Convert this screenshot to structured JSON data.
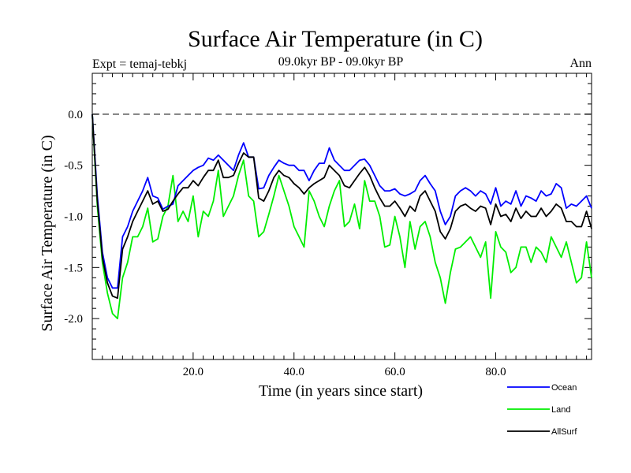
{
  "chart_data": {
    "type": "line",
    "title": "Surface Air Temperature (in C)",
    "subtitle": "09.0kyr BP - 09.0kyr BP",
    "expt_label": "Expt = temaj-tebkj",
    "season_label": "Ann",
    "xlabel": "Time (in years since start)",
    "ylabel": "Surface Air Temperature (in C)",
    "xlim": [
      0,
      99
    ],
    "ylim": [
      -2.4,
      0.4
    ],
    "xticks": [
      20,
      40,
      60,
      80
    ],
    "xtick_labels": [
      "20.0",
      "40.0",
      "60.0",
      "80.0"
    ],
    "yticks": [
      0.0,
      -0.5,
      -1.0,
      -1.5,
      -2.0
    ],
    "ytick_labels": [
      "0.0",
      "-0.5",
      "-1.0",
      "-1.5",
      "-2.0"
    ],
    "zero_line": 0.0,
    "x": [
      0,
      1,
      2,
      3,
      4,
      5,
      6,
      7,
      8,
      9,
      10,
      11,
      12,
      13,
      14,
      15,
      16,
      17,
      18,
      19,
      20,
      21,
      22,
      23,
      24,
      25,
      26,
      27,
      28,
      29,
      30,
      31,
      32,
      33,
      34,
      35,
      36,
      37,
      38,
      39,
      40,
      41,
      42,
      43,
      44,
      45,
      46,
      47,
      48,
      49,
      50,
      51,
      52,
      53,
      54,
      55,
      56,
      57,
      58,
      59,
      60,
      61,
      62,
      63,
      64,
      65,
      66,
      67,
      68,
      69,
      70,
      71,
      72,
      73,
      74,
      75,
      76,
      77,
      78,
      79,
      80,
      81,
      82,
      83,
      84,
      85,
      86,
      87,
      88,
      89,
      90,
      91,
      92,
      93,
      94,
      95,
      96,
      97,
      98,
      99
    ],
    "series": [
      {
        "name": "Ocean",
        "color": "#0000ff",
        "values": [
          0.0,
          -0.8,
          -1.35,
          -1.6,
          -1.7,
          -1.7,
          -1.2,
          -1.1,
          -0.95,
          -0.85,
          -0.75,
          -0.62,
          -0.8,
          -0.82,
          -0.93,
          -0.9,
          -0.88,
          -0.7,
          -0.65,
          -0.6,
          -0.55,
          -0.52,
          -0.5,
          -0.43,
          -0.45,
          -0.4,
          -0.45,
          -0.5,
          -0.55,
          -0.4,
          -0.28,
          -0.42,
          -0.42,
          -0.73,
          -0.72,
          -0.6,
          -0.52,
          -0.45,
          -0.48,
          -0.5,
          -0.5,
          -0.55,
          -0.55,
          -0.65,
          -0.55,
          -0.48,
          -0.48,
          -0.33,
          -0.45,
          -0.5,
          -0.55,
          -0.55,
          -0.5,
          -0.45,
          -0.44,
          -0.5,
          -0.6,
          -0.7,
          -0.75,
          -0.75,
          -0.73,
          -0.78,
          -0.8,
          -0.78,
          -0.75,
          -0.65,
          -0.6,
          -0.68,
          -0.75,
          -0.95,
          -1.08,
          -1.0,
          -0.8,
          -0.75,
          -0.72,
          -0.75,
          -0.8,
          -0.75,
          -0.78,
          -0.88,
          -0.72,
          -0.9,
          -0.85,
          -0.88,
          -0.75,
          -0.9,
          -0.8,
          -0.82,
          -0.85,
          -0.75,
          -0.8,
          -0.78,
          -0.68,
          -0.72,
          -0.92,
          -0.88,
          -0.9,
          -0.85,
          -0.8,
          -0.92
        ]
      },
      {
        "name": "Land",
        "color": "#00ee00",
        "values": [
          0.0,
          -0.9,
          -1.45,
          -1.75,
          -1.95,
          -2.0,
          -1.6,
          -1.45,
          -1.2,
          -1.2,
          -1.1,
          -0.92,
          -1.25,
          -1.22,
          -1.0,
          -0.9,
          -0.6,
          -1.05,
          -0.95,
          -1.05,
          -0.8,
          -1.2,
          -0.95,
          -1.0,
          -0.85,
          -0.55,
          -1.0,
          -0.9,
          -0.8,
          -0.6,
          -0.45,
          -0.8,
          -0.85,
          -1.2,
          -1.15,
          -0.98,
          -0.8,
          -0.6,
          -0.75,
          -0.9,
          -1.1,
          -1.2,
          -1.3,
          -0.75,
          -0.85,
          -1.0,
          -1.1,
          -0.9,
          -0.75,
          -0.65,
          -1.1,
          -1.05,
          -0.88,
          -1.12,
          -0.65,
          -0.85,
          -0.85,
          -1.0,
          -1.3,
          -1.28,
          -1.0,
          -1.2,
          -1.5,
          -1.05,
          -1.32,
          -1.1,
          -1.05,
          -1.2,
          -1.45,
          -1.6,
          -1.85,
          -1.55,
          -1.32,
          -1.3,
          -1.25,
          -1.2,
          -1.3,
          -1.4,
          -1.25,
          -1.8,
          -1.15,
          -1.3,
          -1.35,
          -1.55,
          -1.5,
          -1.3,
          -1.3,
          -1.45,
          -1.3,
          -1.35,
          -1.45,
          -1.2,
          -1.3,
          -1.4,
          -1.25,
          -1.45,
          -1.65,
          -1.6,
          -1.25,
          -1.6
        ]
      },
      {
        "name": "AllSurf",
        "color": "#000000",
        "values": [
          0.0,
          -0.85,
          -1.4,
          -1.65,
          -1.78,
          -1.8,
          -1.32,
          -1.2,
          -1.05,
          -0.95,
          -0.85,
          -0.75,
          -0.88,
          -0.85,
          -0.95,
          -0.93,
          -0.85,
          -0.78,
          -0.72,
          -0.72,
          -0.65,
          -0.7,
          -0.62,
          -0.55,
          -0.55,
          -0.45,
          -0.62,
          -0.62,
          -0.6,
          -0.48,
          -0.38,
          -0.42,
          -0.42,
          -0.82,
          -0.85,
          -0.75,
          -0.62,
          -0.55,
          -0.6,
          -0.62,
          -0.68,
          -0.72,
          -0.78,
          -0.72,
          -0.68,
          -0.65,
          -0.62,
          -0.5,
          -0.55,
          -0.6,
          -0.7,
          -0.72,
          -0.65,
          -0.58,
          -0.52,
          -0.6,
          -0.72,
          -0.82,
          -0.9,
          -0.9,
          -0.85,
          -0.92,
          -1.0,
          -0.9,
          -0.95,
          -0.8,
          -0.75,
          -0.85,
          -0.95,
          -1.15,
          -1.22,
          -1.12,
          -0.95,
          -0.9,
          -0.88,
          -0.92,
          -0.95,
          -0.9,
          -0.92,
          -1.08,
          -0.88,
          -1.0,
          -0.98,
          -1.05,
          -0.92,
          -1.02,
          -0.95,
          -1.0,
          -1.0,
          -0.92,
          -1.0,
          -0.95,
          -0.88,
          -0.92,
          -1.05,
          -1.05,
          -1.1,
          -1.1,
          -0.95,
          -1.12
        ]
      }
    ]
  }
}
